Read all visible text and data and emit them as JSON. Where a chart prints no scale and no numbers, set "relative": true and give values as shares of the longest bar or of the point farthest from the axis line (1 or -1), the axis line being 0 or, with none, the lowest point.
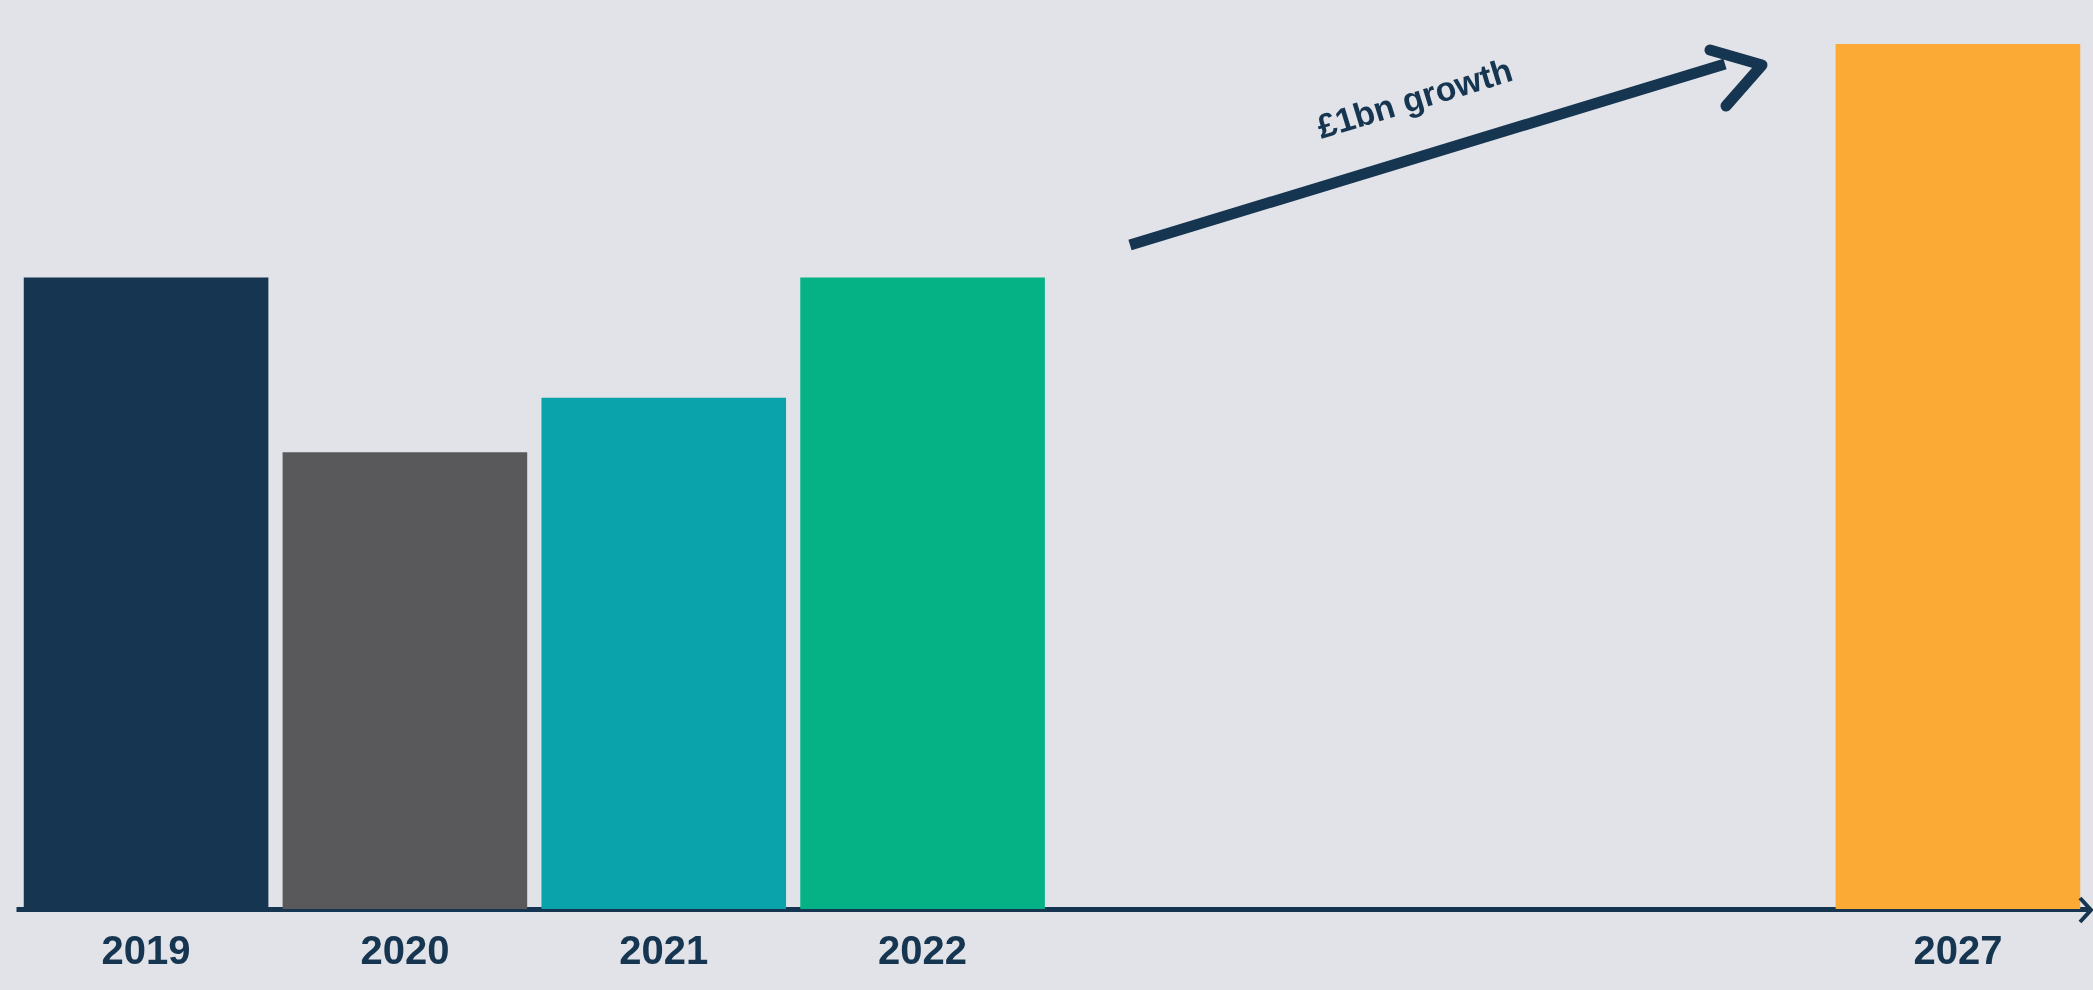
{
  "chart_data": {
    "type": "bar",
    "relative": true,
    "categories": [
      "2019",
      "2020",
      "2021",
      "2022",
      null,
      null,
      null,
      "2027"
    ],
    "values": [
      0.73,
      0.528,
      0.591,
      0.73,
      null,
      null,
      null,
      1
    ],
    "colors": [
      "#163550",
      "#59595b",
      "#0aa3ab",
      "#04b286",
      "#e1e3e8",
      "#e1e3e8",
      "#e1e3e8",
      "#fbaa35"
    ],
    "annotations": [
      "£1bn growth"
    ],
    "legend": false
  }
}
